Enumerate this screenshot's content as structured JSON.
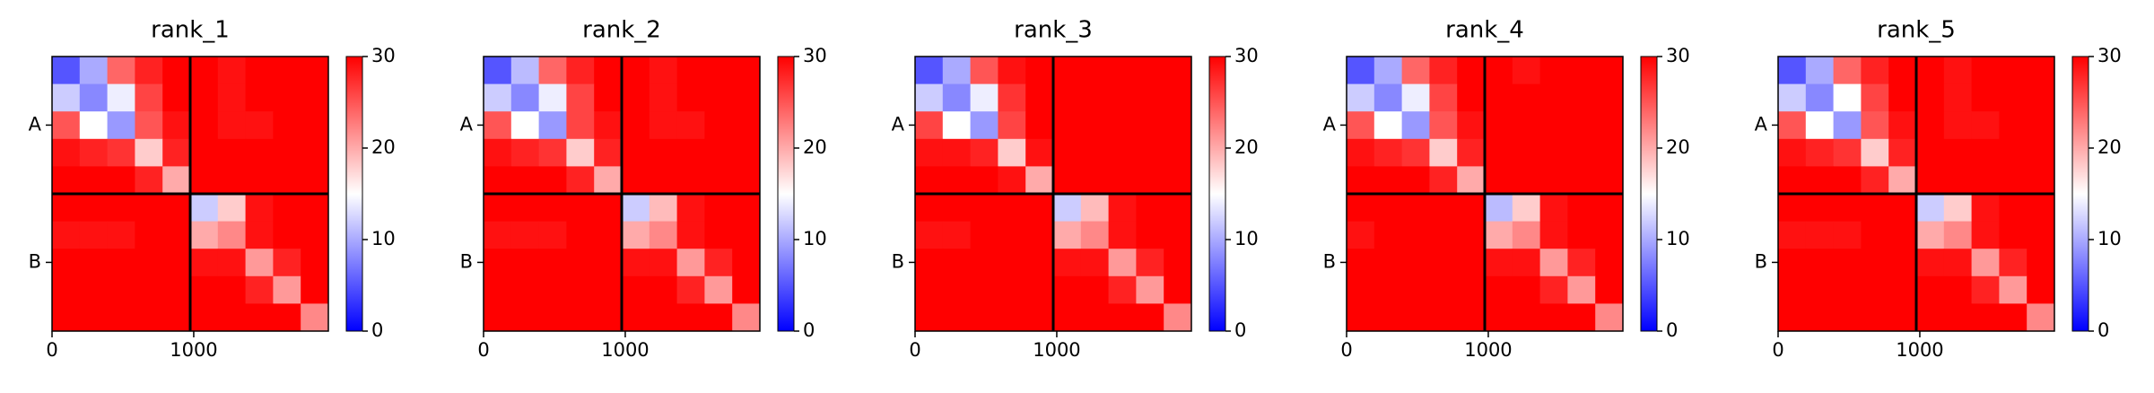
{
  "chart_data": [
    {
      "type": "heatmap",
      "title": "rank_1",
      "colormap": "bwr",
      "bins": [
        0,
        195,
        390,
        585,
        780,
        975,
        1170,
        1365,
        1560,
        1755,
        1950
      ],
      "z": [
        [
          5,
          10,
          24,
          28,
          30,
          30,
          29,
          30,
          30,
          30
        ],
        [
          12,
          8,
          14,
          26,
          30,
          30,
          29,
          30,
          30,
          30
        ],
        [
          25,
          15,
          9,
          25,
          29,
          30,
          29,
          29,
          30,
          30
        ],
        [
          29,
          28,
          27,
          18,
          28,
          30,
          30,
          30,
          30,
          30
        ],
        [
          30,
          30,
          30,
          28,
          20,
          30,
          30,
          30,
          30,
          30
        ],
        [
          30,
          30,
          30,
          30,
          30,
          12,
          18,
          29,
          30,
          30
        ],
        [
          29,
          29,
          29,
          30,
          30,
          20,
          22,
          29,
          30,
          30
        ],
        [
          30,
          30,
          30,
          30,
          30,
          29,
          29,
          21,
          28,
          30
        ],
        [
          30,
          30,
          30,
          30,
          30,
          30,
          30,
          28,
          21,
          30
        ],
        [
          30,
          30,
          30,
          30,
          30,
          30,
          30,
          30,
          30,
          22
        ]
      ],
      "xlim": [
        0,
        1950
      ],
      "ylim": [
        1950,
        0
      ],
      "xticks": [
        0,
        1000
      ],
      "yticks": [
        {
          "value": 487,
          "label": "A"
        },
        {
          "value": 1462,
          "label": "B"
        }
      ],
      "boundaries": [
        975
      ],
      "clim": [
        0,
        30
      ],
      "cticks": [
        0,
        10,
        20,
        30
      ]
    },
    {
      "type": "heatmap",
      "title": "rank_2",
      "colormap": "bwr",
      "bins": [
        0,
        195,
        390,
        585,
        780,
        975,
        1170,
        1365,
        1560,
        1755,
        1950
      ],
      "z": [
        [
          5,
          11,
          24,
          28,
          30,
          30,
          29,
          30,
          30,
          30
        ],
        [
          12,
          8,
          14,
          26,
          30,
          30,
          29,
          30,
          30,
          30
        ],
        [
          25,
          15,
          9,
          26,
          29,
          30,
          29,
          29,
          30,
          30
        ],
        [
          29,
          28,
          27,
          18,
          28,
          30,
          30,
          30,
          30,
          30
        ],
        [
          30,
          30,
          30,
          28,
          20,
          30,
          30,
          30,
          30,
          30
        ],
        [
          30,
          30,
          30,
          30,
          30,
          12,
          19,
          29,
          30,
          30
        ],
        [
          29,
          29,
          29,
          30,
          30,
          20,
          22,
          29,
          30,
          30
        ],
        [
          30,
          30,
          30,
          30,
          30,
          29,
          29,
          21,
          28,
          30
        ],
        [
          30,
          30,
          30,
          30,
          30,
          30,
          30,
          28,
          21,
          30
        ],
        [
          30,
          30,
          30,
          30,
          30,
          30,
          30,
          30,
          30,
          22
        ]
      ],
      "xlim": [
        0,
        1950
      ],
      "ylim": [
        1950,
        0
      ],
      "xticks": [
        0,
        1000
      ],
      "yticks": [
        {
          "value": 487,
          "label": "A"
        },
        {
          "value": 1462,
          "label": "B"
        }
      ],
      "boundaries": [
        975
      ],
      "clim": [
        0,
        30
      ],
      "cticks": [
        0,
        10,
        20,
        30
      ]
    },
    {
      "type": "heatmap",
      "title": "rank_3",
      "colormap": "bwr",
      "bins": [
        0,
        195,
        390,
        585,
        780,
        975,
        1170,
        1365,
        1560,
        1755,
        1950
      ],
      "z": [
        [
          5,
          10,
          25,
          29,
          30,
          30,
          30,
          30,
          30,
          30
        ],
        [
          12,
          8,
          14,
          27,
          30,
          30,
          30,
          30,
          30,
          30
        ],
        [
          26,
          15,
          9,
          26,
          30,
          30,
          30,
          30,
          30,
          30
        ],
        [
          29,
          29,
          28,
          18,
          29,
          30,
          30,
          30,
          30,
          30
        ],
        [
          30,
          30,
          30,
          29,
          20,
          30,
          30,
          30,
          30,
          30
        ],
        [
          30,
          30,
          30,
          30,
          30,
          12,
          19,
          29,
          30,
          30
        ],
        [
          29,
          29,
          30,
          30,
          30,
          20,
          22,
          29,
          30,
          30
        ],
        [
          30,
          30,
          30,
          30,
          30,
          29,
          29,
          21,
          28,
          30
        ],
        [
          30,
          30,
          30,
          30,
          30,
          30,
          30,
          28,
          21,
          30
        ],
        [
          30,
          30,
          30,
          30,
          30,
          30,
          30,
          30,
          30,
          22
        ]
      ],
      "xlim": [
        0,
        1950
      ],
      "ylim": [
        1950,
        0
      ],
      "xticks": [
        0,
        1000
      ],
      "yticks": [
        {
          "value": 487,
          "label": "A"
        },
        {
          "value": 1462,
          "label": "B"
        }
      ],
      "boundaries": [
        975
      ],
      "clim": [
        0,
        30
      ],
      "cticks": [
        0,
        10,
        20,
        30
      ]
    },
    {
      "type": "heatmap",
      "title": "rank_4",
      "colormap": "bwr",
      "bins": [
        0,
        195,
        390,
        585,
        780,
        975,
        1170,
        1365,
        1560,
        1755,
        1950
      ],
      "z": [
        [
          5,
          10,
          24,
          28,
          30,
          30,
          29,
          30,
          30,
          30
        ],
        [
          12,
          8,
          14,
          26,
          30,
          30,
          30,
          30,
          30,
          30
        ],
        [
          25,
          15,
          9,
          25,
          29,
          30,
          30,
          30,
          30,
          30
        ],
        [
          29,
          28,
          27,
          18,
          28,
          30,
          30,
          30,
          30,
          30
        ],
        [
          30,
          30,
          30,
          28,
          20,
          30,
          30,
          30,
          30,
          30
        ],
        [
          30,
          30,
          30,
          30,
          30,
          11,
          18,
          29,
          30,
          30
        ],
        [
          29,
          30,
          30,
          30,
          30,
          20,
          22,
          29,
          30,
          30
        ],
        [
          30,
          30,
          30,
          30,
          30,
          29,
          29,
          21,
          28,
          30
        ],
        [
          30,
          30,
          30,
          30,
          30,
          30,
          30,
          28,
          21,
          30
        ],
        [
          30,
          30,
          30,
          30,
          30,
          30,
          30,
          30,
          30,
          22
        ]
      ],
      "xlim": [
        0,
        1950
      ],
      "ylim": [
        1950,
        0
      ],
      "xticks": [
        0,
        1000
      ],
      "yticks": [
        {
          "value": 487,
          "label": "A"
        },
        {
          "value": 1462,
          "label": "B"
        }
      ],
      "boundaries": [
        975
      ],
      "clim": [
        0,
        30
      ],
      "cticks": [
        0,
        10,
        20,
        30
      ]
    },
    {
      "type": "heatmap",
      "title": "rank_5",
      "colormap": "bwr",
      "bins": [
        0,
        195,
        390,
        585,
        780,
        975,
        1170,
        1365,
        1560,
        1755,
        1950
      ],
      "z": [
        [
          5,
          10,
          24,
          28,
          30,
          30,
          29,
          30,
          30,
          30
        ],
        [
          12,
          8,
          15,
          26,
          30,
          30,
          29,
          30,
          30,
          30
        ],
        [
          25,
          15,
          9,
          25,
          29,
          30,
          29,
          29,
          30,
          30
        ],
        [
          29,
          28,
          27,
          18,
          28,
          30,
          30,
          30,
          30,
          30
        ],
        [
          30,
          30,
          30,
          28,
          20,
          30,
          30,
          30,
          30,
          30
        ],
        [
          30,
          30,
          30,
          30,
          30,
          12,
          18,
          29,
          30,
          30
        ],
        [
          29,
          29,
          29,
          30,
          30,
          20,
          22,
          29,
          30,
          30
        ],
        [
          30,
          30,
          30,
          30,
          30,
          29,
          29,
          21,
          28,
          30
        ],
        [
          30,
          30,
          30,
          30,
          30,
          30,
          30,
          28,
          21,
          30
        ],
        [
          30,
          30,
          30,
          30,
          30,
          30,
          30,
          30,
          30,
          22
        ]
      ],
      "xlim": [
        0,
        1950
      ],
      "ylim": [
        1950,
        0
      ],
      "xticks": [
        0,
        1000
      ],
      "yticks": [
        {
          "value": 487,
          "label": "A"
        },
        {
          "value": 1462,
          "label": "B"
        }
      ],
      "boundaries": [
        975
      ],
      "clim": [
        0,
        30
      ],
      "cticks": [
        0,
        10,
        20,
        30
      ]
    }
  ]
}
